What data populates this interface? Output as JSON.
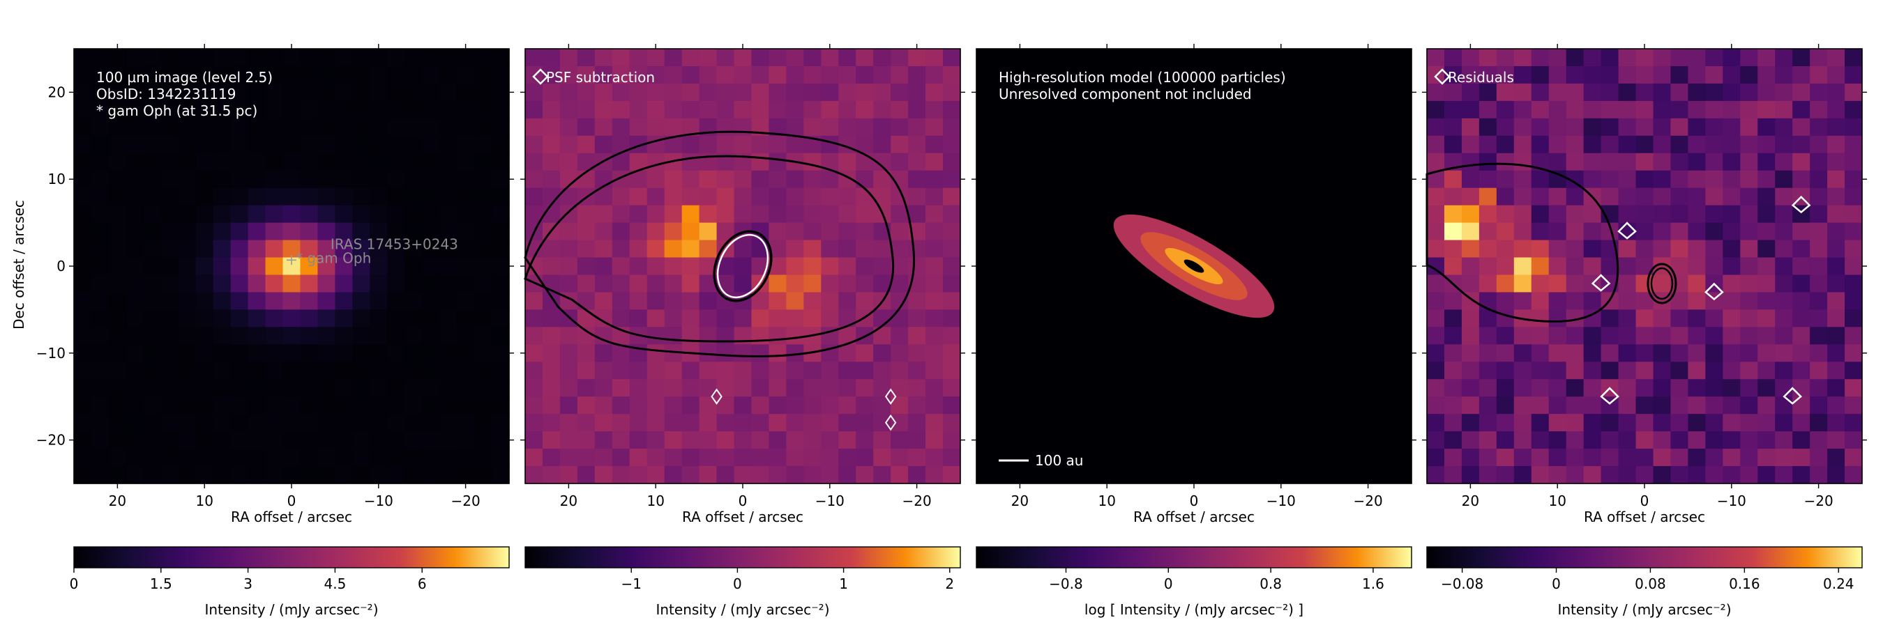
{
  "figure": {
    "y_axis_label": "Dec offset / arcsec"
  },
  "chart_data": [
    {
      "type": "heatmap",
      "title": "",
      "annotations": [
        "100 µm image (level 2.5)",
        "ObsID: 1342231119",
        "* gam Oph (at 31.5 pc)"
      ],
      "markers": [
        {
          "label": "* gam Oph",
          "x": 0,
          "y": 0.7
        },
        {
          "label": "IRAS 17453+0243",
          "x": -4,
          "y": 2.3
        }
      ],
      "xlabel": "RA offset / arcsec",
      "ylabel": "Dec offset / arcsec",
      "xlim": [
        25,
        -25
      ],
      "ylim": [
        -25,
        25
      ],
      "xticks": [
        20,
        10,
        0,
        -10,
        -20
      ],
      "yticks": [
        20,
        10,
        0,
        -10,
        -20
      ],
      "xtick_labels": [
        "20",
        "10",
        "0",
        "−10",
        "−20"
      ],
      "ytick_labels": [
        "20",
        "10",
        "0",
        "−10",
        "−20"
      ],
      "source": {
        "x": 0,
        "y": 0,
        "peak": 7.2,
        "sigma_x": 4.2,
        "sigma_y": 3.4
      },
      "colorbar": {
        "label": "Intensity / (mJy arcsec⁻²)",
        "range": [
          0,
          7.5
        ],
        "ticks": [
          0,
          1.5,
          3,
          4.5,
          6
        ],
        "tick_labels": [
          "0",
          "1.5",
          "3",
          "4.5",
          "6"
        ]
      },
      "colormap": "inferno"
    },
    {
      "type": "heatmap",
      "title": "",
      "annotations": [
        "PSF subtraction"
      ],
      "xlabel": "",
      "ylabel": "",
      "xlim": [
        25,
        -25
      ],
      "ylim": [
        -25,
        25
      ],
      "xticks": [
        20,
        10,
        0,
        -10,
        -20
      ],
      "yticks": [
        20,
        10,
        0,
        -10,
        -20
      ],
      "xtick_labels": [
        "20",
        "10",
        "0",
        "−10",
        "−20"
      ],
      "ytick_labels": [],
      "blobs": [
        {
          "x": 5,
          "y": 3,
          "peak": 2.0
        },
        {
          "x": -4,
          "y": -2,
          "peak": 1.9
        },
        {
          "x": 0,
          "y": 0,
          "peak": -1.9
        }
      ],
      "contours": "black and white",
      "colorbar": {
        "label": "Intensity / (mJy arcsec⁻²)",
        "range": [
          -2.0,
          2.1
        ],
        "ticks": [
          -1,
          0,
          1,
          2
        ],
        "tick_labels": [
          "−1",
          "0",
          "1",
          "2"
        ]
      },
      "colormap": "inferno"
    },
    {
      "type": "heatmap",
      "title": "",
      "annotations": [
        "High-resolution model (100000 particles)",
        "Unresolved component not included"
      ],
      "scalebar_label": "100 au",
      "xlabel": "",
      "ylabel": "",
      "xlim": [
        25,
        -25
      ],
      "ylim": [
        -25,
        25
      ],
      "xticks": [
        20,
        10,
        0,
        -10,
        -20
      ],
      "yticks": [
        20,
        10,
        0,
        -10,
        -20
      ],
      "xtick_labels": [
        "20",
        "10",
        "0",
        "−10",
        "−20"
      ],
      "ytick_labels": [],
      "disk": {
        "x": 0,
        "y": 0,
        "radius": 10,
        "position_angle_deg": 30
      },
      "colorbar": {
        "label": "log [ Intensity / (mJy arcsec⁻²) ]",
        "range": [
          -1.5,
          1.9
        ],
        "ticks": [
          -0.8,
          0,
          0.8,
          1.6
        ],
        "tick_labels": [
          "−0.8",
          "0",
          "0.8",
          "1.6"
        ]
      },
      "colormap": "inferno"
    },
    {
      "type": "heatmap",
      "title": "",
      "annotations": [
        "Residuals"
      ],
      "xlabel": "",
      "ylabel": "",
      "xlim": [
        25,
        -25
      ],
      "ylim": [
        -25,
        25
      ],
      "xticks": [
        20,
        10,
        0,
        -10,
        -20
      ],
      "yticks": [
        20,
        10,
        0,
        -10,
        -20
      ],
      "xtick_labels": [
        "20",
        "10",
        "0",
        "−10",
        "−20"
      ],
      "ytick_labels": [],
      "blobs": [
        {
          "x": 21,
          "y": 5,
          "peak": 0.24
        },
        {
          "x": 14,
          "y": -1,
          "peak": 0.16
        },
        {
          "x": -2,
          "y": -2,
          "peak": 0.14
        }
      ],
      "contours": "black and white",
      "colorbar": {
        "label": "Intensity / (mJy arcsec⁻²)",
        "range": [
          -0.11,
          0.26
        ],
        "ticks": [
          -0.08,
          0,
          0.08,
          0.16,
          0.24
        ],
        "tick_labels": [
          "−0.08",
          "0",
          "0.08",
          "0.16",
          "0.24"
        ]
      },
      "colormap": "inferno"
    }
  ]
}
